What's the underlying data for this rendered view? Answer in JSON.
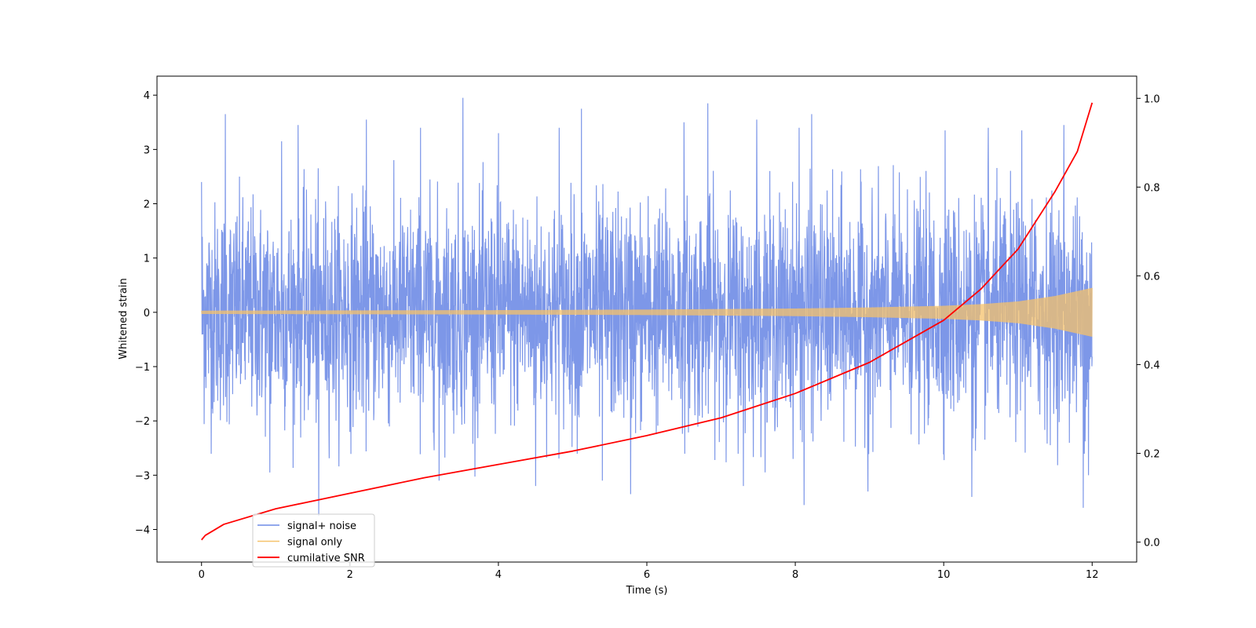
{
  "chart_data": {
    "type": "line",
    "title": "",
    "xlabel": "Time (s)",
    "ylabel": "Whitened strain",
    "y2label": "",
    "xlim": [
      -0.6,
      12.6
    ],
    "ylim": [
      -4.6,
      4.35
    ],
    "y2lim": [
      -0.045,
      1.05
    ],
    "xticks": [
      0,
      2,
      4,
      6,
      8,
      10,
      12
    ],
    "yticks": [
      -4,
      -3,
      -2,
      -1,
      0,
      1,
      2,
      3,
      4
    ],
    "y2ticks": [
      0.0,
      0.2,
      0.4,
      0.6,
      0.8,
      1.0
    ],
    "y2tick_labels": [
      "0.0",
      "0.2",
      "0.4",
      "0.6",
      "0.8",
      "1.0"
    ],
    "grid": false,
    "legend_position": "lower-left",
    "series": [
      {
        "name": "signal+ noise",
        "color": "#6f8ce6",
        "axis": "left",
        "duration_s": 12,
        "noise_std": 1.0,
        "peaks": [
          [
            0.0,
            2.4
          ],
          [
            0.32,
            3.65
          ],
          [
            1.08,
            3.15
          ],
          [
            1.3,
            3.45
          ],
          [
            2.22,
            3.55
          ],
          [
            2.95,
            3.4
          ],
          [
            3.52,
            3.95
          ],
          [
            4.0,
            3.3
          ],
          [
            4.82,
            3.4
          ],
          [
            5.12,
            3.75
          ],
          [
            6.5,
            3.5
          ],
          [
            6.82,
            3.85
          ],
          [
            7.48,
            3.55
          ],
          [
            8.05,
            3.4
          ],
          [
            8.22,
            3.65
          ],
          [
            10.02,
            3.35
          ],
          [
            10.6,
            3.4
          ],
          [
            11.05,
            3.35
          ],
          [
            11.62,
            3.45
          ],
          [
            1.58,
            -3.75
          ],
          [
            0.92,
            -2.95
          ],
          [
            3.2,
            -3.1
          ],
          [
            4.5,
            -3.2
          ],
          [
            5.4,
            -3.1
          ],
          [
            5.78,
            -3.35
          ],
          [
            7.3,
            -3.2
          ],
          [
            8.12,
            -3.55
          ],
          [
            8.98,
            -3.3
          ],
          [
            10.38,
            -3.4
          ],
          [
            11.88,
            -3.6
          ],
          [
            11.95,
            -3.0
          ]
        ]
      },
      {
        "name": "signal only",
        "color": "#f5c26b",
        "axis": "left",
        "amplitude_envelope": {
          "t": [
            0,
            2,
            4,
            6,
            8,
            9,
            10,
            10.5,
            11,
            11.5,
            12
          ],
          "a": [
            0.03,
            0.035,
            0.04,
            0.05,
            0.07,
            0.09,
            0.12,
            0.15,
            0.2,
            0.3,
            0.45
          ]
        }
      },
      {
        "name": "cumilative SNR",
        "color": "#ff0000",
        "axis": "right",
        "x": [
          0,
          0.05,
          0.3,
          1,
          2,
          3,
          4,
          5,
          6,
          7,
          8,
          9,
          10,
          10.5,
          11,
          11.5,
          11.8,
          12
        ],
        "y": [
          0.005,
          0.015,
          0.04,
          0.075,
          0.11,
          0.145,
          0.175,
          0.205,
          0.24,
          0.28,
          0.335,
          0.405,
          0.5,
          0.57,
          0.66,
          0.79,
          0.88,
          0.99
        ]
      }
    ]
  }
}
